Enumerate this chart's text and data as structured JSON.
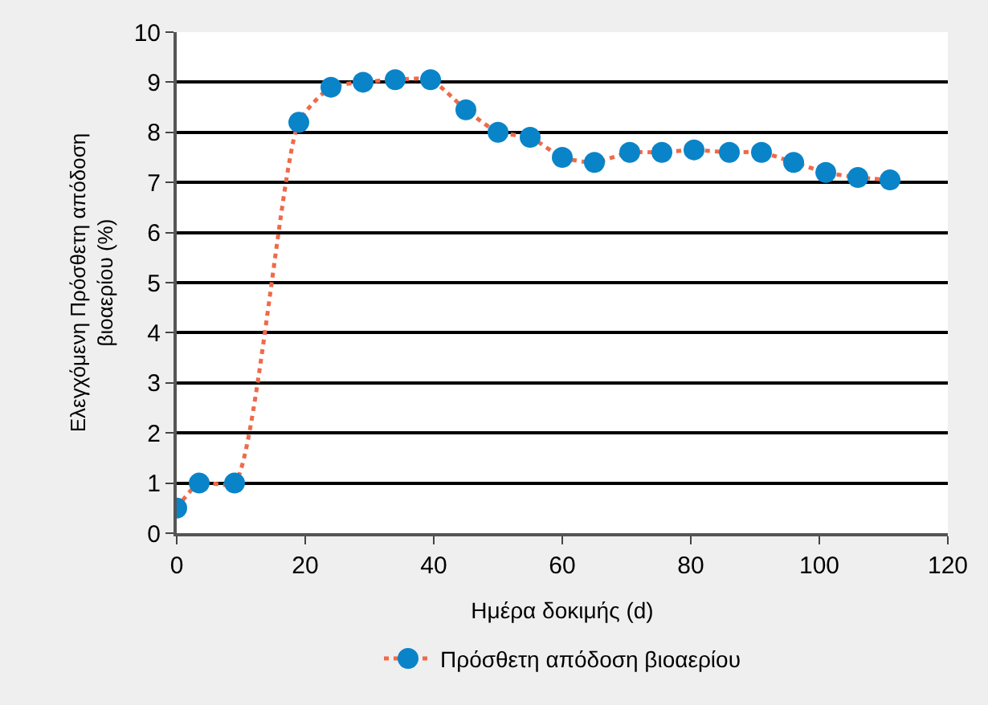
{
  "chart_data": {
    "type": "line",
    "xlabel": "Ημέρα δοκιμής (d)",
    "ylabel": "Ελεγχόμενη Πρόσθετη απόδοση\nβιοαερίου (%)",
    "x": [
      0,
      3.5,
      9,
      19,
      24,
      29,
      34,
      39.5,
      45,
      50,
      55,
      60,
      65,
      70.5,
      75.5,
      80.5,
      86,
      91,
      96,
      101,
      106,
      111
    ],
    "series": [
      {
        "name": "Πρόσθετη απόδοση βιοαερίου",
        "color": "#0a84c8",
        "values": [
          0.5,
          1.0,
          1.0,
          8.2,
          8.9,
          9.0,
          9.05,
          9.05,
          8.45,
          8.0,
          7.9,
          7.5,
          7.4,
          7.6,
          7.6,
          7.65,
          7.6,
          7.6,
          7.4,
          7.2,
          7.1,
          7.05
        ]
      }
    ],
    "xlim": [
      0,
      120
    ],
    "xticks": [
      0,
      20,
      40,
      60,
      80,
      100,
      120
    ],
    "ylim": [
      0,
      10
    ],
    "yticks": [
      0,
      1,
      2,
      3,
      4,
      5,
      6,
      7,
      8,
      9,
      10
    ],
    "grid": "y",
    "legend": "bottom",
    "marker": "circle",
    "line_style": "dotted"
  }
}
